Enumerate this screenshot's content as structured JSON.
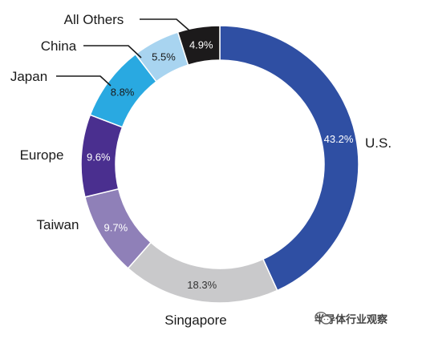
{
  "chart_data": {
    "type": "pie",
    "variant": "donut",
    "title": "",
    "slices": [
      {
        "label": "U.S.",
        "value": 43.2,
        "value_label": "43.2%",
        "color": "#2f4fa3",
        "value_color": "#ffffff"
      },
      {
        "label": "Singapore",
        "value": 18.3,
        "value_label": "18.3%",
        "color": "#c9c9cb",
        "value_color": "#333333"
      },
      {
        "label": "Taiwan",
        "value": 9.7,
        "value_label": "9.7%",
        "color": "#8f80b8",
        "value_color": "#ffffff"
      },
      {
        "label": "Europe",
        "value": 9.6,
        "value_label": "9.6%",
        "color": "#4a2f8f",
        "value_color": "#ffffff"
      },
      {
        "label": "Japan",
        "value": 8.8,
        "value_label": "8.8%",
        "color": "#29a9e1",
        "value_color": "#1a1a1a"
      },
      {
        "label": "China",
        "value": 5.5,
        "value_label": "5.5%",
        "color": "#a8d4f0",
        "value_color": "#1a1a1a"
      },
      {
        "label": "All Others",
        "value": 4.9,
        "value_label": "4.9%",
        "color": "#1c1a1b",
        "value_color": "#ffffff"
      }
    ]
  },
  "watermark": {
    "text": "半导体行业观察",
    "icon": "wechat-icon"
  }
}
